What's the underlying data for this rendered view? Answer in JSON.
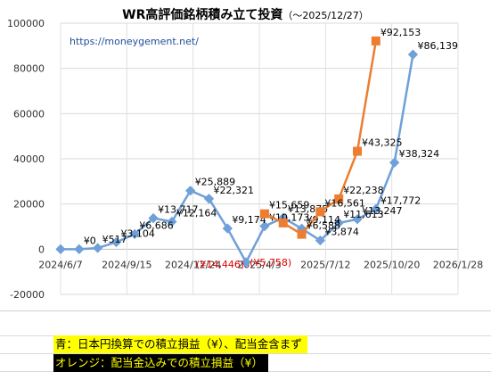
{
  "title": "WR高評価銘柄積み立て投資",
  "subtitle": "（〜2025/12/27）",
  "url": "https://moneygement.net/",
  "notes": {
    "blue": "青：日本円換算での積立損益（¥）、配当金含まず",
    "orange": "オレンジ：配当金込みでの積立損益（¥）"
  },
  "colors": {
    "blue": "#6fa0d8",
    "orange": "#ed7d31",
    "negative_label": "#e00000"
  },
  "chart_data": {
    "type": "line",
    "ylim": [
      -20000,
      100000
    ],
    "yticks": [
      -20000,
      0,
      20000,
      40000,
      60000,
      80000,
      100000
    ],
    "ytick_labels": [
      "-20000",
      "0",
      "20000",
      "40000",
      "60000",
      "80000",
      "100000"
    ],
    "xlim": [
      "2024-06-07",
      "2026-01-28"
    ],
    "xticks": [
      "2024-06-07",
      "2024-09-15",
      "2024-12-24",
      "2025-04-03",
      "2025-07-12",
      "2025-10-20",
      "2026-01-28"
    ],
    "xtick_labels": [
      "2024/6/7",
      "2024/9/15",
      "2024/12/24",
      "2025/4/3",
      "2025/7/12",
      "2025/10/20",
      "2026/1/28"
    ],
    "series": [
      {
        "color": "blue",
        "points": [
          {
            "x": "2024-06-07",
            "y": 0,
            "label": ""
          },
          {
            "x": "2024-07-05",
            "y": 0,
            "label": "¥0"
          },
          {
            "x": "2024-08-02",
            "y": 517,
            "label": "¥517"
          },
          {
            "x": "2024-08-30",
            "y": 3104,
            "label": "¥3,104"
          },
          {
            "x": "2024-09-27",
            "y": 6686,
            "label": "¥6,686"
          },
          {
            "x": "2024-10-25",
            "y": 13717,
            "label": "¥13,717"
          },
          {
            "x": "2024-11-22",
            "y": 12164,
            "label": "¥12,164"
          },
          {
            "x": "2024-12-20",
            "y": 25889,
            "label": "¥25,889"
          },
          {
            "x": "2025-01-17",
            "y": 22321,
            "label": "¥22,321"
          },
          {
            "x": "2025-02-14",
            "y": 9174,
            "label": "¥9,174"
          },
          {
            "x": "2025-03-14",
            "y": -5758,
            "label": ""
          },
          {
            "x": "2025-04-11",
            "y": 10173,
            "label": "¥10,173"
          },
          {
            "x": "2025-05-09",
            "y": 13875,
            "label": "¥13,875"
          },
          {
            "x": "2025-06-06",
            "y": 9114,
            "label": "¥9,114"
          },
          {
            "x": "2025-07-04",
            "y": 3874,
            "label": "¥3,874"
          },
          {
            "x": "2025-08-01",
            "y": 11613,
            "label": "¥11,613"
          },
          {
            "x": "2025-08-29",
            "y": 13247,
            "label": "¥13,247"
          },
          {
            "x": "2025-09-26",
            "y": 17772,
            "label": "¥17,772"
          },
          {
            "x": "2025-10-24",
            "y": 38324,
            "label": "¥38,324"
          },
          {
            "x": "2025-11-21",
            "y": 86139,
            "label": "¥86,139"
          }
        ]
      },
      {
        "color": "orange",
        "points": [
          {
            "x": "2025-04-11",
            "y": 15659,
            "label": "¥15,659"
          },
          {
            "x": "2025-05-09",
            "y": 11613,
            "label": ""
          },
          {
            "x": "2025-06-06",
            "y": 6588,
            "label": "¥6,588"
          },
          {
            "x": "2025-07-04",
            "y": 16561,
            "label": "¥16,561"
          },
          {
            "x": "2025-08-01",
            "y": 22238,
            "label": "¥22,238"
          },
          {
            "x": "2025-08-29",
            "y": 43325,
            "label": "¥43,325"
          },
          {
            "x": "2025-09-26",
            "y": 92153,
            "label": "¥92,153"
          }
        ]
      }
    ],
    "annotations": [
      "(¥14,446)",
      "(¥5,758)"
    ]
  }
}
